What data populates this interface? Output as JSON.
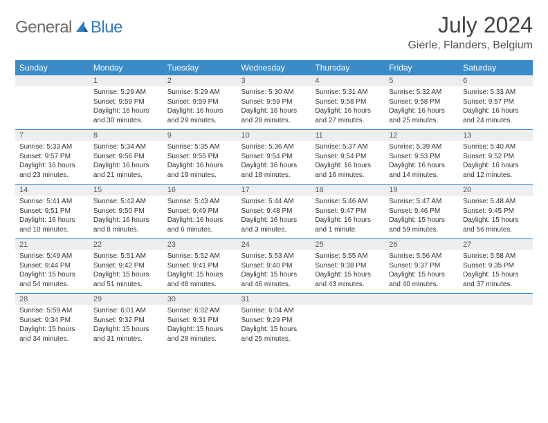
{
  "brand": {
    "part1": "General",
    "part2": "Blue"
  },
  "title": "July 2024",
  "location": "Gierle, Flanders, Belgium",
  "colors": {
    "header_bg": "#3b8bc9",
    "header_fg": "#ffffff",
    "daynum_bg": "#eceeef",
    "rule": "#3b8bc9",
    "brand_gray": "#6b6b6b",
    "brand_blue": "#2f7bbf"
  },
  "weekdays": [
    "Sunday",
    "Monday",
    "Tuesday",
    "Wednesday",
    "Thursday",
    "Friday",
    "Saturday"
  ],
  "weeks": [
    [
      {
        "num": "",
        "sunrise": "",
        "sunset": "",
        "daylight": ""
      },
      {
        "num": "1",
        "sunrise": "Sunrise: 5:29 AM",
        "sunset": "Sunset: 9:59 PM",
        "daylight": "Daylight: 16 hours and 30 minutes."
      },
      {
        "num": "2",
        "sunrise": "Sunrise: 5:29 AM",
        "sunset": "Sunset: 9:59 PM",
        "daylight": "Daylight: 16 hours and 29 minutes."
      },
      {
        "num": "3",
        "sunrise": "Sunrise: 5:30 AM",
        "sunset": "Sunset: 9:59 PM",
        "daylight": "Daylight: 16 hours and 28 minutes."
      },
      {
        "num": "4",
        "sunrise": "Sunrise: 5:31 AM",
        "sunset": "Sunset: 9:58 PM",
        "daylight": "Daylight: 16 hours and 27 minutes."
      },
      {
        "num": "5",
        "sunrise": "Sunrise: 5:32 AM",
        "sunset": "Sunset: 9:58 PM",
        "daylight": "Daylight: 16 hours and 25 minutes."
      },
      {
        "num": "6",
        "sunrise": "Sunrise: 5:33 AM",
        "sunset": "Sunset: 9:57 PM",
        "daylight": "Daylight: 16 hours and 24 minutes."
      }
    ],
    [
      {
        "num": "7",
        "sunrise": "Sunrise: 5:33 AM",
        "sunset": "Sunset: 9:57 PM",
        "daylight": "Daylight: 16 hours and 23 minutes."
      },
      {
        "num": "8",
        "sunrise": "Sunrise: 5:34 AM",
        "sunset": "Sunset: 9:56 PM",
        "daylight": "Daylight: 16 hours and 21 minutes."
      },
      {
        "num": "9",
        "sunrise": "Sunrise: 5:35 AM",
        "sunset": "Sunset: 9:55 PM",
        "daylight": "Daylight: 16 hours and 19 minutes."
      },
      {
        "num": "10",
        "sunrise": "Sunrise: 5:36 AM",
        "sunset": "Sunset: 9:54 PM",
        "daylight": "Daylight: 16 hours and 18 minutes."
      },
      {
        "num": "11",
        "sunrise": "Sunrise: 5:37 AM",
        "sunset": "Sunset: 9:54 PM",
        "daylight": "Daylight: 16 hours and 16 minutes."
      },
      {
        "num": "12",
        "sunrise": "Sunrise: 5:39 AM",
        "sunset": "Sunset: 9:53 PM",
        "daylight": "Daylight: 16 hours and 14 minutes."
      },
      {
        "num": "13",
        "sunrise": "Sunrise: 5:40 AM",
        "sunset": "Sunset: 9:52 PM",
        "daylight": "Daylight: 16 hours and 12 minutes."
      }
    ],
    [
      {
        "num": "14",
        "sunrise": "Sunrise: 5:41 AM",
        "sunset": "Sunset: 9:51 PM",
        "daylight": "Daylight: 16 hours and 10 minutes."
      },
      {
        "num": "15",
        "sunrise": "Sunrise: 5:42 AM",
        "sunset": "Sunset: 9:50 PM",
        "daylight": "Daylight: 16 hours and 8 minutes."
      },
      {
        "num": "16",
        "sunrise": "Sunrise: 5:43 AM",
        "sunset": "Sunset: 9:49 PM",
        "daylight": "Daylight: 16 hours and 6 minutes."
      },
      {
        "num": "17",
        "sunrise": "Sunrise: 5:44 AM",
        "sunset": "Sunset: 9:48 PM",
        "daylight": "Daylight: 16 hours and 3 minutes."
      },
      {
        "num": "18",
        "sunrise": "Sunrise: 5:46 AM",
        "sunset": "Sunset: 9:47 PM",
        "daylight": "Daylight: 16 hours and 1 minute."
      },
      {
        "num": "19",
        "sunrise": "Sunrise: 5:47 AM",
        "sunset": "Sunset: 9:46 PM",
        "daylight": "Daylight: 15 hours and 59 minutes."
      },
      {
        "num": "20",
        "sunrise": "Sunrise: 5:48 AM",
        "sunset": "Sunset: 9:45 PM",
        "daylight": "Daylight: 15 hours and 56 minutes."
      }
    ],
    [
      {
        "num": "21",
        "sunrise": "Sunrise: 5:49 AM",
        "sunset": "Sunset: 9:44 PM",
        "daylight": "Daylight: 15 hours and 54 minutes."
      },
      {
        "num": "22",
        "sunrise": "Sunrise: 5:51 AM",
        "sunset": "Sunset: 9:42 PM",
        "daylight": "Daylight: 15 hours and 51 minutes."
      },
      {
        "num": "23",
        "sunrise": "Sunrise: 5:52 AM",
        "sunset": "Sunset: 9:41 PM",
        "daylight": "Daylight: 15 hours and 48 minutes."
      },
      {
        "num": "24",
        "sunrise": "Sunrise: 5:53 AM",
        "sunset": "Sunset: 9:40 PM",
        "daylight": "Daylight: 15 hours and 46 minutes."
      },
      {
        "num": "25",
        "sunrise": "Sunrise: 5:55 AM",
        "sunset": "Sunset: 9:38 PM",
        "daylight": "Daylight: 15 hours and 43 minutes."
      },
      {
        "num": "26",
        "sunrise": "Sunrise: 5:56 AM",
        "sunset": "Sunset: 9:37 PM",
        "daylight": "Daylight: 15 hours and 40 minutes."
      },
      {
        "num": "27",
        "sunrise": "Sunrise: 5:58 AM",
        "sunset": "Sunset: 9:35 PM",
        "daylight": "Daylight: 15 hours and 37 minutes."
      }
    ],
    [
      {
        "num": "28",
        "sunrise": "Sunrise: 5:59 AM",
        "sunset": "Sunset: 9:34 PM",
        "daylight": "Daylight: 15 hours and 34 minutes."
      },
      {
        "num": "29",
        "sunrise": "Sunrise: 6:01 AM",
        "sunset": "Sunset: 9:32 PM",
        "daylight": "Daylight: 15 hours and 31 minutes."
      },
      {
        "num": "30",
        "sunrise": "Sunrise: 6:02 AM",
        "sunset": "Sunset: 9:31 PM",
        "daylight": "Daylight: 15 hours and 28 minutes."
      },
      {
        "num": "31",
        "sunrise": "Sunrise: 6:04 AM",
        "sunset": "Sunset: 9:29 PM",
        "daylight": "Daylight: 15 hours and 25 minutes."
      },
      {
        "num": "",
        "sunrise": "",
        "sunset": "",
        "daylight": ""
      },
      {
        "num": "",
        "sunrise": "",
        "sunset": "",
        "daylight": ""
      },
      {
        "num": "",
        "sunrise": "",
        "sunset": "",
        "daylight": ""
      }
    ]
  ]
}
